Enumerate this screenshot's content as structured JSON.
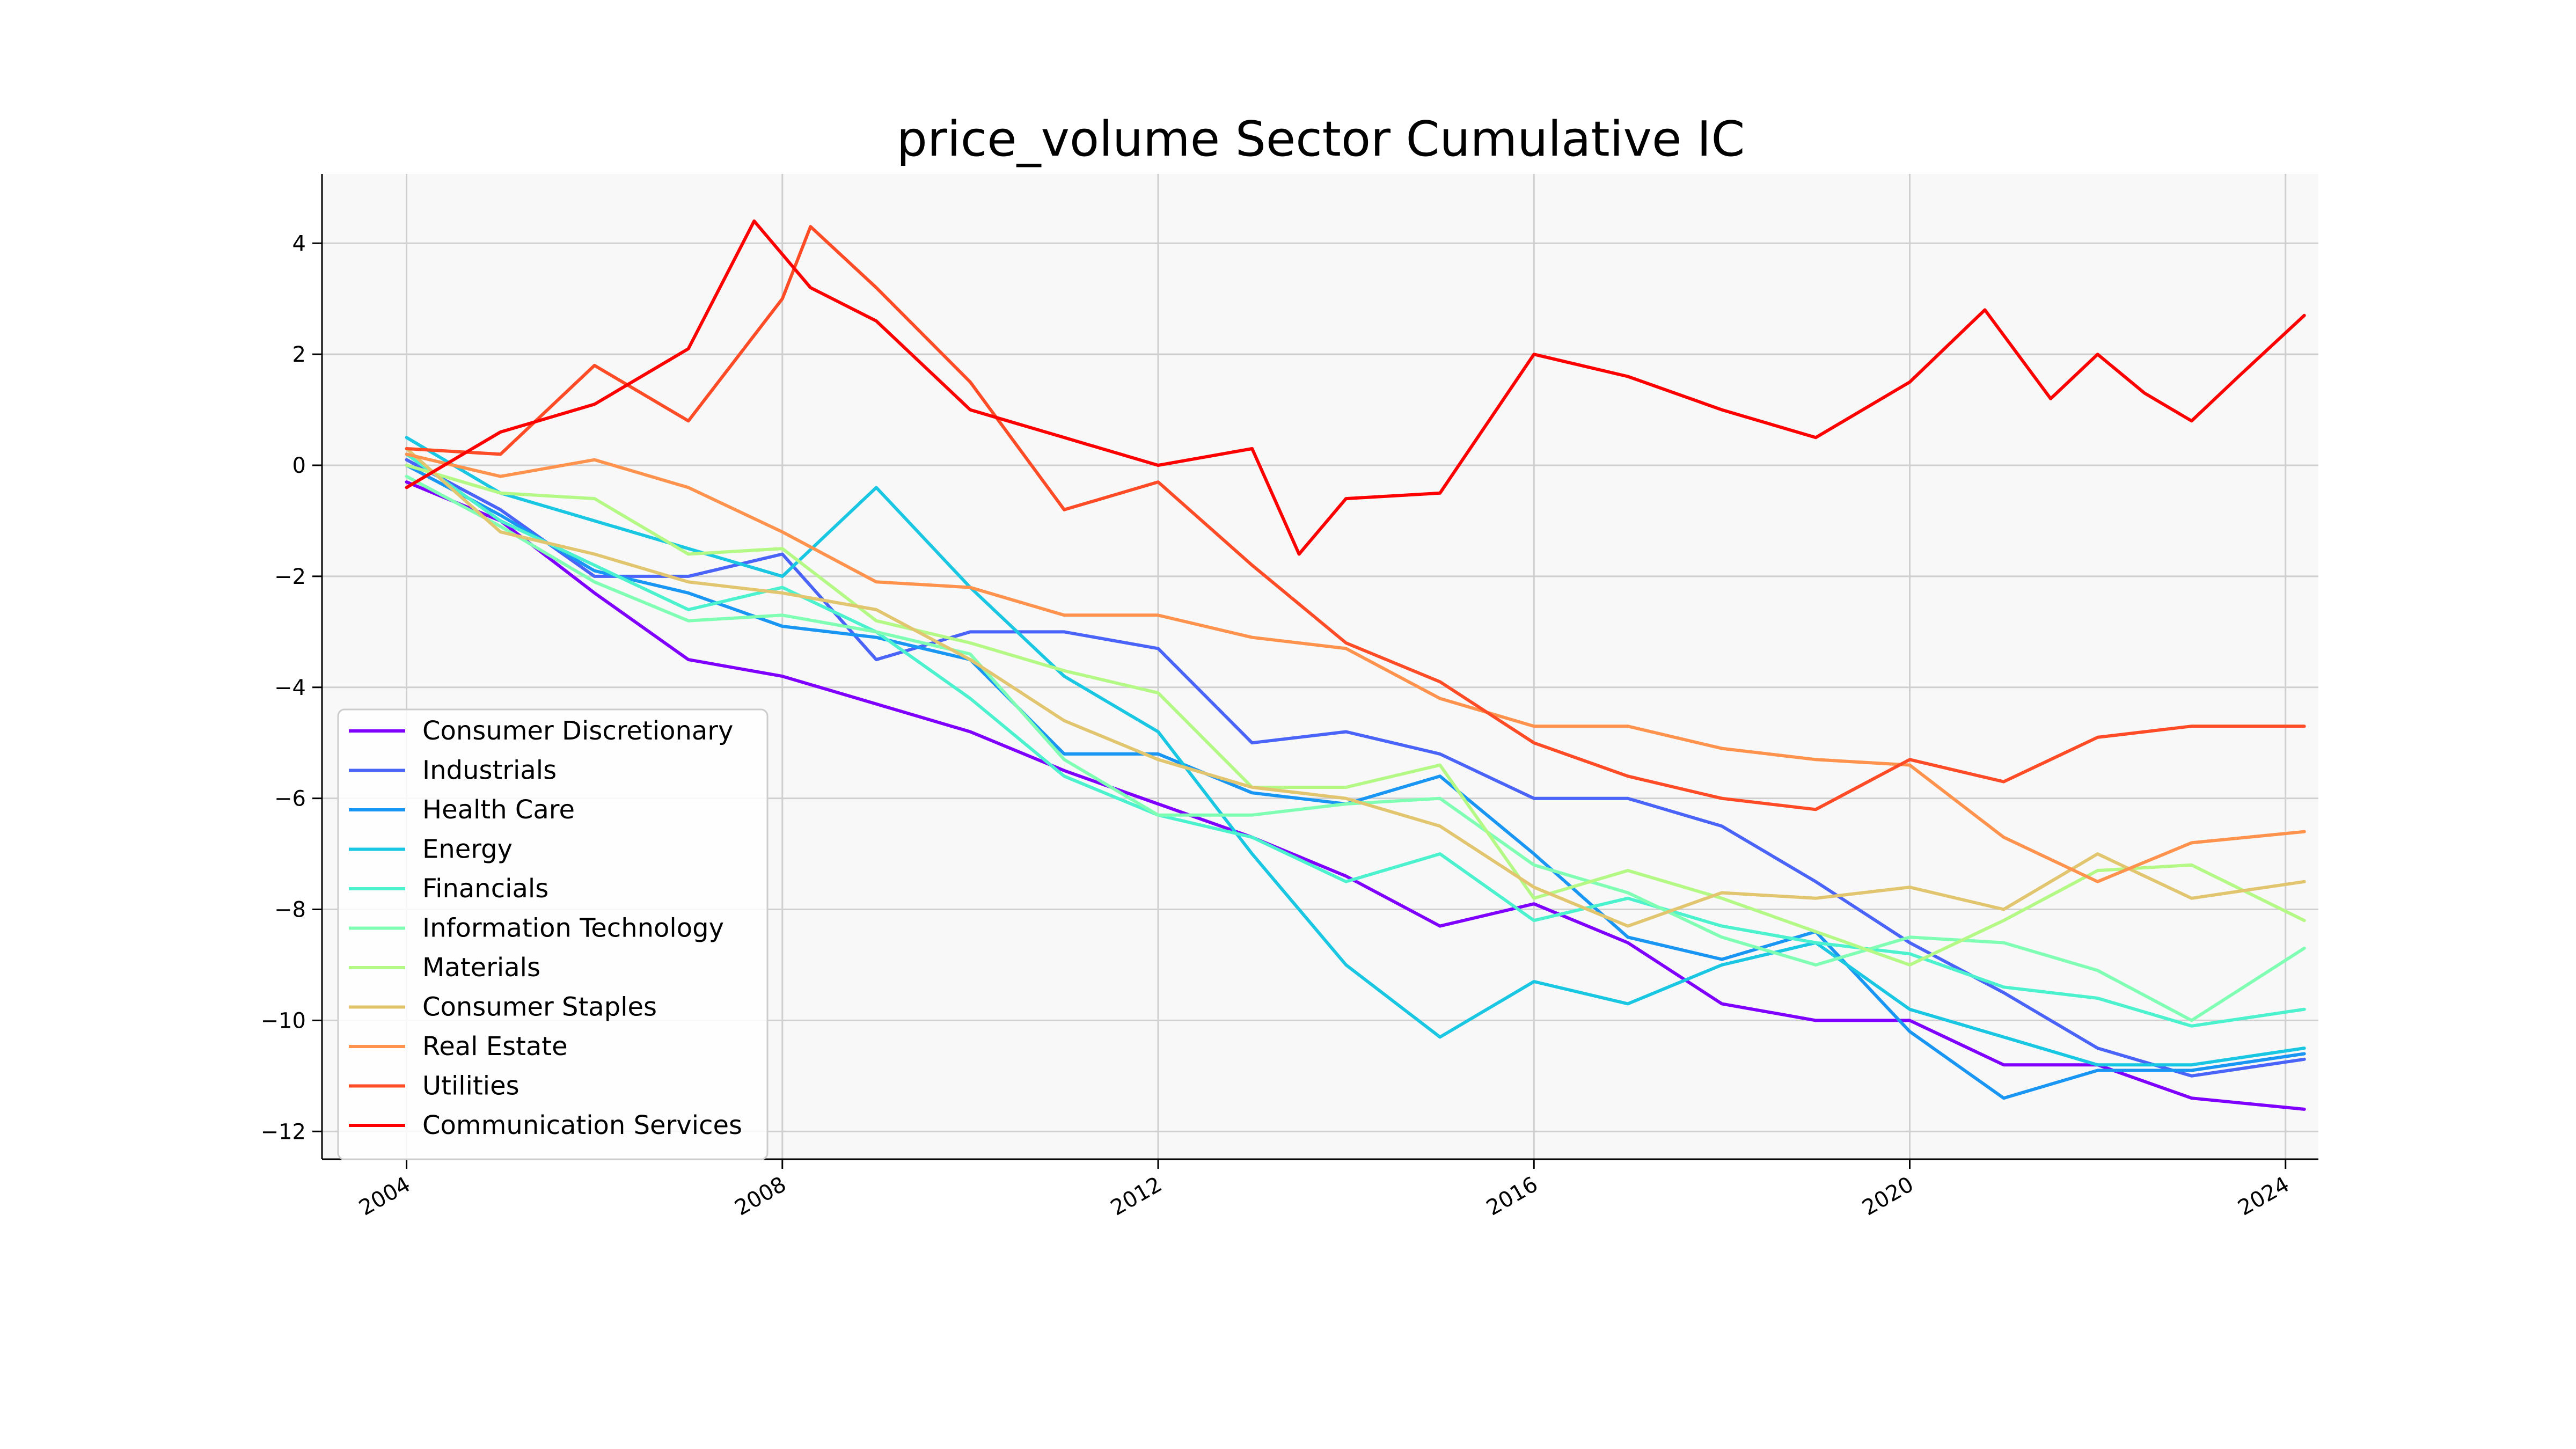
{
  "chart_data": {
    "type": "line",
    "title": "price_volume Sector Cumulative IC",
    "xlabel": "",
    "ylabel": "",
    "x_ticks": [
      "2004",
      "2008",
      "2012",
      "2016",
      "2020",
      "2024"
    ],
    "y_ticks": [
      "4",
      "2",
      "0",
      "−2",
      "−4",
      "−6",
      "−8",
      "−10",
      "−12"
    ],
    "xlim": [
      2003.1,
      2024.35
    ],
    "ylim": [
      -12.5,
      5.25
    ],
    "grid": true,
    "legend_position": "lower-left",
    "series": [
      {
        "name": "Consumer Discretionary",
        "color": "#8000ff",
        "points": [
          [
            2004.0,
            -0.3
          ],
          [
            2005.0,
            -1.0
          ],
          [
            2006.0,
            -2.3
          ],
          [
            2007.0,
            -3.5
          ],
          [
            2008.0,
            -3.8
          ],
          [
            2009.0,
            -4.3
          ],
          [
            2010.0,
            -4.8
          ],
          [
            2011.0,
            -5.5
          ],
          [
            2012.0,
            -6.1
          ],
          [
            2013.0,
            -6.7
          ],
          [
            2014.0,
            -7.4
          ],
          [
            2015.0,
            -8.3
          ],
          [
            2016.0,
            -7.9
          ],
          [
            2017.0,
            -8.6
          ],
          [
            2018.0,
            -9.7
          ],
          [
            2019.0,
            -10.0
          ],
          [
            2020.0,
            -10.0
          ],
          [
            2021.0,
            -10.8
          ],
          [
            2022.0,
            -10.8
          ],
          [
            2023.0,
            -11.4
          ],
          [
            2024.2,
            -11.6
          ]
        ]
      },
      {
        "name": "Industrials",
        "color": "#4a63f9",
        "points": [
          [
            2004.0,
            0.1
          ],
          [
            2005.0,
            -0.8
          ],
          [
            2006.0,
            -2.0
          ],
          [
            2007.0,
            -2.0
          ],
          [
            2008.0,
            -1.6
          ],
          [
            2009.0,
            -3.5
          ],
          [
            2010.0,
            -3.0
          ],
          [
            2011.0,
            -3.0
          ],
          [
            2012.0,
            -3.3
          ],
          [
            2013.0,
            -5.0
          ],
          [
            2014.0,
            -4.8
          ],
          [
            2015.0,
            -5.2
          ],
          [
            2016.0,
            -6.0
          ],
          [
            2017.0,
            -6.0
          ],
          [
            2018.0,
            -6.5
          ],
          [
            2019.0,
            -7.5
          ],
          [
            2020.0,
            -8.6
          ],
          [
            2021.0,
            -9.5
          ],
          [
            2022.0,
            -10.5
          ],
          [
            2023.0,
            -11.0
          ],
          [
            2024.2,
            -10.7
          ]
        ]
      },
      {
        "name": "Health Care",
        "color": "#1996f3",
        "points": [
          [
            2004.0,
            0.0
          ],
          [
            2005.0,
            -0.9
          ],
          [
            2006.0,
            -1.9
          ],
          [
            2007.0,
            -2.3
          ],
          [
            2008.0,
            -2.9
          ],
          [
            2009.0,
            -3.1
          ],
          [
            2010.0,
            -3.5
          ],
          [
            2011.0,
            -5.2
          ],
          [
            2012.0,
            -5.2
          ],
          [
            2013.0,
            -5.9
          ],
          [
            2014.0,
            -6.1
          ],
          [
            2015.0,
            -5.6
          ],
          [
            2016.0,
            -7.0
          ],
          [
            2017.0,
            -8.5
          ],
          [
            2018.0,
            -8.9
          ],
          [
            2019.0,
            -8.4
          ],
          [
            2020.0,
            -10.2
          ],
          [
            2021.0,
            -11.4
          ],
          [
            2022.0,
            -10.9
          ],
          [
            2023.0,
            -10.9
          ],
          [
            2024.2,
            -10.6
          ]
        ]
      },
      {
        "name": "Energy",
        "color": "#1ac7e2",
        "points": [
          [
            2004.0,
            0.5
          ],
          [
            2005.0,
            -0.5
          ],
          [
            2006.0,
            -1.0
          ],
          [
            2007.0,
            -1.5
          ],
          [
            2008.0,
            -2.0
          ],
          [
            2009.0,
            -0.4
          ],
          [
            2010.0,
            -2.2
          ],
          [
            2011.0,
            -3.8
          ],
          [
            2012.0,
            -4.8
          ],
          [
            2013.0,
            -7.0
          ],
          [
            2014.0,
            -9.0
          ],
          [
            2015.0,
            -10.3
          ],
          [
            2016.0,
            -9.3
          ],
          [
            2017.0,
            -9.7
          ],
          [
            2018.0,
            -9.0
          ],
          [
            2019.0,
            -8.6
          ],
          [
            2020.0,
            -9.8
          ],
          [
            2021.0,
            -10.3
          ],
          [
            2022.0,
            -10.8
          ],
          [
            2023.0,
            -10.8
          ],
          [
            2024.2,
            -10.5
          ]
        ]
      },
      {
        "name": "Financials",
        "color": "#4cf2ce",
        "points": [
          [
            2004.0,
            0.2
          ],
          [
            2005.0,
            -1.0
          ],
          [
            2006.0,
            -1.8
          ],
          [
            2007.0,
            -2.6
          ],
          [
            2008.0,
            -2.2
          ],
          [
            2009.0,
            -3.0
          ],
          [
            2010.0,
            -4.2
          ],
          [
            2011.0,
            -5.6
          ],
          [
            2012.0,
            -6.3
          ],
          [
            2013.0,
            -6.7
          ],
          [
            2014.0,
            -7.5
          ],
          [
            2015.0,
            -7.0
          ],
          [
            2016.0,
            -8.2
          ],
          [
            2017.0,
            -7.8
          ],
          [
            2018.0,
            -8.3
          ],
          [
            2019.0,
            -8.6
          ],
          [
            2020.0,
            -8.8
          ],
          [
            2021.0,
            -9.4
          ],
          [
            2022.0,
            -9.6
          ],
          [
            2023.0,
            -10.1
          ],
          [
            2024.2,
            -9.8
          ]
        ]
      },
      {
        "name": "Information Technology",
        "color": "#80ffb4",
        "points": [
          [
            2004.0,
            -0.2
          ],
          [
            2005.0,
            -1.1
          ],
          [
            2006.0,
            -2.1
          ],
          [
            2007.0,
            -2.8
          ],
          [
            2008.0,
            -2.7
          ],
          [
            2009.0,
            -3.0
          ],
          [
            2010.0,
            -3.4
          ],
          [
            2011.0,
            -5.3
          ],
          [
            2012.0,
            -6.3
          ],
          [
            2013.0,
            -6.3
          ],
          [
            2014.0,
            -6.1
          ],
          [
            2015.0,
            -6.0
          ],
          [
            2016.0,
            -7.2
          ],
          [
            2017.0,
            -7.7
          ],
          [
            2018.0,
            -8.5
          ],
          [
            2019.0,
            -9.0
          ],
          [
            2020.0,
            -8.5
          ],
          [
            2021.0,
            -8.6
          ],
          [
            2022.0,
            -9.1
          ],
          [
            2023.0,
            -10.0
          ],
          [
            2024.2,
            -8.7
          ]
        ]
      },
      {
        "name": "Materials",
        "color": "#b4f986",
        "points": [
          [
            2004.0,
            0.0
          ],
          [
            2005.0,
            -0.5
          ],
          [
            2006.0,
            -0.6
          ],
          [
            2007.0,
            -1.6
          ],
          [
            2008.0,
            -1.5
          ],
          [
            2009.0,
            -2.8
          ],
          [
            2010.0,
            -3.2
          ],
          [
            2011.0,
            -3.7
          ],
          [
            2012.0,
            -4.1
          ],
          [
            2013.0,
            -5.8
          ],
          [
            2014.0,
            -5.8
          ],
          [
            2015.0,
            -5.4
          ],
          [
            2016.0,
            -7.8
          ],
          [
            2017.0,
            -7.3
          ],
          [
            2018.0,
            -7.8
          ],
          [
            2019.0,
            -8.4
          ],
          [
            2020.0,
            -9.0
          ],
          [
            2021.0,
            -8.2
          ],
          [
            2022.0,
            -7.3
          ],
          [
            2023.0,
            -7.2
          ],
          [
            2024.2,
            -8.2
          ]
        ]
      },
      {
        "name": "Consumer Staples",
        "color": "#e2c56f",
        "points": [
          [
            2004.0,
            0.3
          ],
          [
            2005.0,
            -1.2
          ],
          [
            2006.0,
            -1.6
          ],
          [
            2007.0,
            -2.1
          ],
          [
            2008.0,
            -2.3
          ],
          [
            2009.0,
            -2.6
          ],
          [
            2010.0,
            -3.5
          ],
          [
            2011.0,
            -4.6
          ],
          [
            2012.0,
            -5.3
          ],
          [
            2013.0,
            -5.8
          ],
          [
            2014.0,
            -6.0
          ],
          [
            2015.0,
            -6.5
          ],
          [
            2016.0,
            -7.6
          ],
          [
            2017.0,
            -8.3
          ],
          [
            2018.0,
            -7.7
          ],
          [
            2019.0,
            -7.8
          ],
          [
            2020.0,
            -7.6
          ],
          [
            2021.0,
            -8.0
          ],
          [
            2022.0,
            -7.0
          ],
          [
            2023.0,
            -7.8
          ],
          [
            2024.2,
            -7.5
          ]
        ]
      },
      {
        "name": "Real Estate",
        "color": "#ff934d",
        "points": [
          [
            2004.0,
            0.2
          ],
          [
            2005.0,
            -0.2
          ],
          [
            2006.0,
            0.1
          ],
          [
            2007.0,
            -0.4
          ],
          [
            2008.0,
            -1.2
          ],
          [
            2009.0,
            -2.1
          ],
          [
            2010.0,
            -2.2
          ],
          [
            2011.0,
            -2.7
          ],
          [
            2012.0,
            -2.7
          ],
          [
            2013.0,
            -3.1
          ],
          [
            2014.0,
            -3.3
          ],
          [
            2015.0,
            -4.2
          ],
          [
            2016.0,
            -4.7
          ],
          [
            2017.0,
            -4.7
          ],
          [
            2018.0,
            -5.1
          ],
          [
            2019.0,
            -5.3
          ],
          [
            2020.0,
            -5.4
          ],
          [
            2021.0,
            -6.7
          ],
          [
            2022.0,
            -7.5
          ],
          [
            2023.0,
            -6.8
          ],
          [
            2024.2,
            -6.6
          ]
        ]
      },
      {
        "name": "Utilities",
        "color": "#ff4b26",
        "points": [
          [
            2004.0,
            0.3
          ],
          [
            2005.0,
            0.2
          ],
          [
            2006.0,
            1.8
          ],
          [
            2007.0,
            0.8
          ],
          [
            2008.0,
            3.0
          ],
          [
            2008.3,
            4.3
          ],
          [
            2009.0,
            3.2
          ],
          [
            2010.0,
            1.5
          ],
          [
            2011.0,
            -0.8
          ],
          [
            2012.0,
            -0.3
          ],
          [
            2013.0,
            -1.8
          ],
          [
            2014.0,
            -3.2
          ],
          [
            2015.0,
            -3.9
          ],
          [
            2016.0,
            -5.0
          ],
          [
            2017.0,
            -5.6
          ],
          [
            2018.0,
            -6.0
          ],
          [
            2019.0,
            -6.2
          ],
          [
            2020.0,
            -5.3
          ],
          [
            2021.0,
            -5.7
          ],
          [
            2022.0,
            -4.9
          ],
          [
            2023.0,
            -4.7
          ],
          [
            2024.2,
            -4.7
          ]
        ]
      },
      {
        "name": "Communication Services",
        "color": "#ff0000",
        "points": [
          [
            2004.0,
            -0.4
          ],
          [
            2005.0,
            0.6
          ],
          [
            2006.0,
            1.1
          ],
          [
            2007.0,
            2.1
          ],
          [
            2007.7,
            4.4
          ],
          [
            2008.3,
            3.2
          ],
          [
            2009.0,
            2.6
          ],
          [
            2010.0,
            1.0
          ],
          [
            2011.0,
            0.5
          ],
          [
            2012.0,
            0.0
          ],
          [
            2013.0,
            0.3
          ],
          [
            2013.5,
            -1.6
          ],
          [
            2014.0,
            -0.6
          ],
          [
            2015.0,
            -0.5
          ],
          [
            2016.0,
            2.0
          ],
          [
            2017.0,
            1.6
          ],
          [
            2018.0,
            1.0
          ],
          [
            2019.0,
            0.5
          ],
          [
            2020.0,
            1.5
          ],
          [
            2020.8,
            2.8
          ],
          [
            2021.5,
            1.2
          ],
          [
            2022.0,
            2.0
          ],
          [
            2022.5,
            1.3
          ],
          [
            2023.0,
            0.8
          ],
          [
            2023.5,
            1.6
          ],
          [
            2024.2,
            2.7
          ]
        ]
      }
    ]
  }
}
